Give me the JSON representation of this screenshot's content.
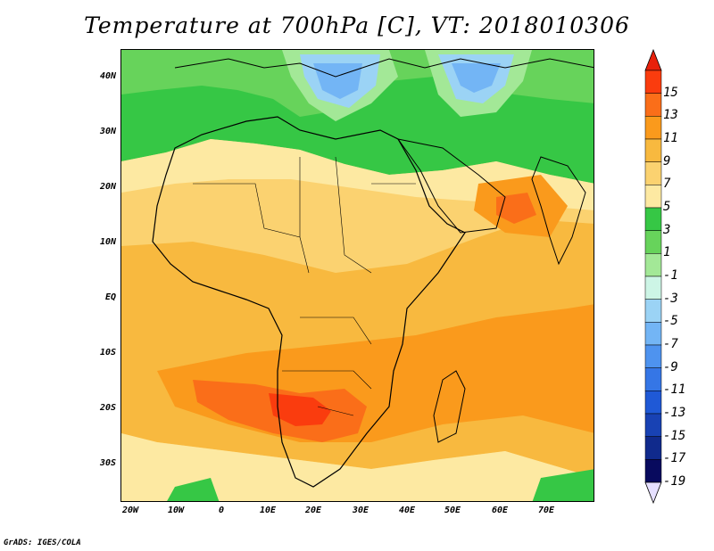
{
  "title": "Temperature at 700hPa [C], VT: 2018010306",
  "credit": "GrADS: IGES/COLA",
  "lat_labels": [
    "40N",
    "30N",
    "20N",
    "10N",
    "EQ",
    "10S",
    "20S",
    "30S"
  ],
  "lon_labels": [
    "20W",
    "10W",
    "0",
    "10E",
    "20E",
    "30E",
    "40E",
    "50E",
    "60E",
    "70E"
  ],
  "map_extent": {
    "lon_min": -25,
    "lon_max": 80,
    "lat_min": -36,
    "lat_max": 45
  },
  "colorbar": {
    "labels": [
      "15",
      "13",
      "11",
      "9",
      "7",
      "5",
      "3",
      "1",
      "-1",
      "-3",
      "-5",
      "-7",
      "-9",
      "-11",
      "-13",
      "-15",
      "-17",
      "-19"
    ],
    "colors": [
      "#fa3c0e",
      "#fa6e19",
      "#fa9a1c",
      "#f8b93f",
      "#fbd270",
      "#fde9a2",
      "#36c745",
      "#67d35b",
      "#a3e897",
      "#cdf5e6",
      "#9bd3f5",
      "#73b5f5",
      "#4e93ef",
      "#3576e6",
      "#1f59d6",
      "#1842b4",
      "#102a8c",
      "#080a5e"
    ],
    "top_triangle_color": "#e8210b",
    "bottom_triangle_color": "#e6e0ff"
  }
}
